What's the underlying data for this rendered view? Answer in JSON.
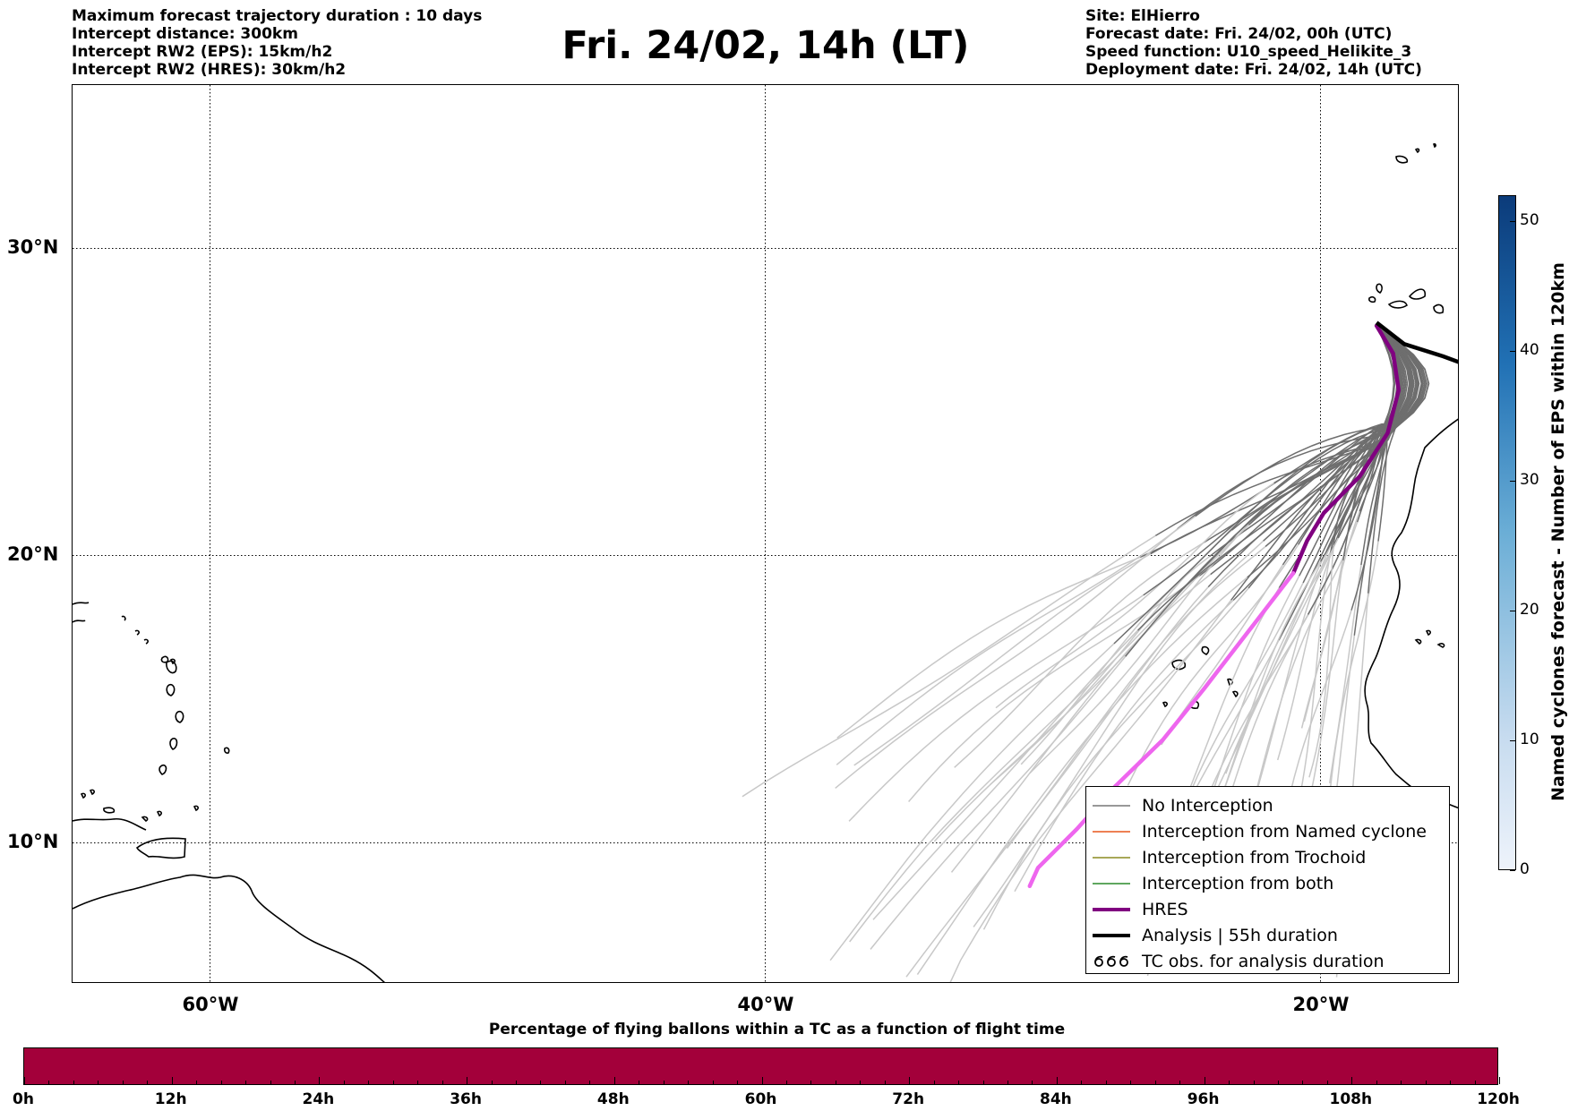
{
  "header": {
    "info_left": [
      "Maximum forecast trajectory duration : 10 days",
      "Intercept distance: 300km",
      "Intercept RW2 (EPS):  15km/h2",
      "Intercept RW2 (HRES): 30km/h2"
    ],
    "title": "Fri. 24/02, 14h (LT)",
    "info_right": [
      "Site: ElHierro",
      "Forecast date: Fri. 24/02, 00h (UTC)",
      "Speed function: U10_speed_Helikite_3",
      "Deployment date: Fri. 24/02, 14h (UTC)"
    ]
  },
  "map": {
    "lat_labels": [
      "30°N",
      "20°N",
      "10°N"
    ],
    "lon_labels": [
      "60°W",
      "40°W",
      "20°W"
    ],
    "extent": {
      "lon_min": -65,
      "lon_max": -15,
      "lat_min": 5.4,
      "lat_max": 34.7
    },
    "launch_site": {
      "lon": -18.0,
      "lat": 27.5
    },
    "hres_track": [
      [
        -18.0,
        27.5
      ],
      [
        -17.4,
        26.6
      ],
      [
        -17.2,
        25.4
      ],
      [
        -17.6,
        24.0
      ],
      [
        -18.6,
        22.6
      ],
      [
        -19.9,
        21.4
      ],
      [
        -20.5,
        20.5
      ],
      [
        -21.0,
        19.4
      ],
      [
        -22.6,
        17.4
      ],
      [
        -24.2,
        15.4
      ],
      [
        -25.7,
        13.6
      ],
      [
        -27.4,
        12.0
      ],
      [
        -28.8,
        10.5
      ],
      [
        -30.2,
        9.2
      ],
      [
        -30.5,
        8.6
      ]
    ],
    "hres_colors": {
      "early": "#800080",
      "late": "#ee66ee"
    },
    "analysis_track": [
      [
        -18.0,
        27.6
      ],
      [
        -17.0,
        26.9
      ],
      [
        -15.6,
        26.5
      ],
      [
        -15.0,
        26.3
      ]
    ],
    "colors": {
      "eps_early": "#6e6e6e",
      "eps_late": "#c8c8c8",
      "hres": "#800080",
      "analysis": "#000000"
    }
  },
  "legend": [
    {
      "label": "No Interception",
      "color": "#777777",
      "width": 1.5,
      "kind": "line"
    },
    {
      "label": "Interception from Named cyclone",
      "color": "#e8561c",
      "width": 1.5,
      "kind": "line"
    },
    {
      "label": "Interception from Trochoid",
      "color": "#8c8c20",
      "width": 1.5,
      "kind": "line"
    },
    {
      "label": "Interception from both",
      "color": "#2a8a2a",
      "width": 1.5,
      "kind": "line"
    },
    {
      "label": "HRES",
      "color": "#800080",
      "width": 4,
      "kind": "line"
    },
    {
      "label": "Analysis | 55h duration",
      "color": "#000000",
      "width": 4,
      "kind": "line"
    },
    {
      "label": "TC obs. for analysis duration",
      "color": "#000000",
      "width": 0,
      "kind": "symbol"
    }
  ],
  "colorbar_vertical": {
    "label": "Named cyclones forecast - Number of EPS within 120km",
    "ticks": [
      "0",
      "10",
      "20",
      "30",
      "40",
      "50"
    ],
    "min": 0,
    "max": 52,
    "color_low": "#eef3fb",
    "color_high": "#0b3b7a"
  },
  "colorbar_horizontal": {
    "title": "Percentage of flying ballons within a TC as a function of flight time",
    "ticks": [
      "0h",
      "12h",
      "24h",
      "36h",
      "48h",
      "60h",
      "72h",
      "84h",
      "96h",
      "108h",
      "120h"
    ],
    "fill_color": "#a3003a"
  }
}
